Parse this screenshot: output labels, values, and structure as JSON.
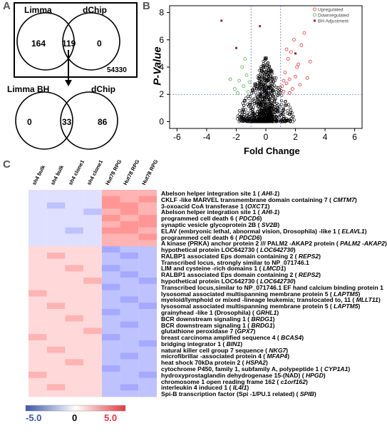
{
  "panel_a": {
    "letter": "A",
    "venn_top": {
      "left_label": "Limma",
      "right_label": "dChip",
      "left_only": "164",
      "overlap": "119",
      "right_only": "0",
      "box_total": "54330"
    },
    "venn_bottom": {
      "left_label": "Limma BH",
      "right_label": "dChip",
      "left_only": "0",
      "overlap": "33",
      "right_only": "86"
    }
  },
  "panel_b": {
    "letter": "B",
    "chart_data": {
      "type": "scatter",
      "xlabel": "Fold Change",
      "ylabel": "P-Value",
      "xlim": [
        -6.5,
        6.5
      ],
      "ylim": [
        -0.5,
        8.5
      ],
      "x_ticks": [
        "-6",
        "-4",
        "-2",
        "0",
        "2",
        "4",
        "6"
      ],
      "y_ticks": [
        "0",
        "2",
        "4",
        "6",
        "8"
      ],
      "thresholds": {
        "fold_change": [
          -1,
          1
        ],
        "p_value": 2
      },
      "legend": [
        "Upregulated",
        "Downregulated",
        "BH Adjustment"
      ],
      "series": [
        {
          "name": "Upregulated",
          "color": "#e2353b",
          "points": [
            [
              1.2,
              2.2
            ],
            [
              1.4,
              2.8
            ],
            [
              1.6,
              3.1
            ],
            [
              1.3,
              3.6
            ],
            [
              1.8,
              2.4
            ],
            [
              2.0,
              3.3
            ],
            [
              2.2,
              4.2
            ],
            [
              1.5,
              4.6
            ],
            [
              1.1,
              2.6
            ],
            [
              1.7,
              5.1
            ],
            [
              2.4,
              5.6
            ],
            [
              1.9,
              6.0
            ],
            [
              2.6,
              6.5
            ],
            [
              2.1,
              4.0
            ],
            [
              1.2,
              3.0
            ],
            [
              2.8,
              3.2
            ],
            [
              1.4,
              5.3
            ],
            [
              3.0,
              4.4
            ],
            [
              1.6,
              2.1
            ],
            [
              2.3,
              2.7
            ]
          ]
        },
        {
          "name": "Downregulated",
          "color": "#56b054",
          "points": [
            [
              -1.2,
              2.2
            ],
            [
              -1.5,
              2.6
            ],
            [
              -1.8,
              3.0
            ],
            [
              -1.3,
              3.4
            ],
            [
              -2.1,
              2.4
            ],
            [
              -1.6,
              4.0
            ],
            [
              -1.1,
              2.9
            ],
            [
              -1.4,
              4.6
            ],
            [
              -2.4,
              3.1
            ],
            [
              -1.9,
              2.1
            ]
          ]
        },
        {
          "name": "BH Adjustment",
          "color": "#8a2a4a",
          "points": [
            [
              -3.0,
              7.4
            ],
            [
              -2.0,
              5.4
            ],
            [
              -0.4,
              7.0
            ],
            [
              2.0,
              5.0
            ]
          ]
        }
      ]
    }
  },
  "panel_c": {
    "letter": "C",
    "columns": [
      "sh4 bulk",
      "sh4 bulk",
      "sh4 clone1",
      "sh4 clone1",
      "Hut78 RPG",
      "Hut78 RPG",
      "Hut78 RPG"
    ],
    "scale": {
      "low": "-5.0",
      "mid": "0",
      "high": "5.0",
      "low_color": "#3d57a8",
      "high_color": "#e13a42"
    },
    "genes": [
      {
        "name": "Abelson helper integration site 1 ( ",
        "sym": "AHI-1",
        "end": ")"
      },
      {
        "name": "CKLF -like MARVEL transmembrane domain containing 7 ( ",
        "sym": "CMTM7",
        "end": ")"
      },
      {
        "name": "3-oxoacid CoA transferase 1 (",
        "sym": "OXCT1",
        "end": ")"
      },
      {
        "name": "Abelson helper integration site 1 ( ",
        "sym": "AHI-1",
        "end": ")"
      },
      {
        "name": "programmed cell death 6 ( ",
        "sym": "PDCD6",
        "end": ")"
      },
      {
        "name": "synaptic vesicle glycoprotein 2B ( ",
        "sym": "SV2B",
        "end": ")"
      },
      {
        "name": "ELAV (embryonic lethal, abnormal vision, Drosophila) -like 1 ( ",
        "sym": "ELAVL1",
        "end": ")"
      },
      {
        "name": "programmed cell death 6 ( ",
        "sym": "PDCD6",
        "end": ")"
      },
      {
        "name": "A kinase (PRKA) anchor protein 2 /// PALM2 -AKAP2 protein ( ",
        "sym": "PALM2 -AKAP2",
        "end": ")"
      },
      {
        "name": "hypothetical protein LOC642730 ( ",
        "sym": "LOC642730",
        "end": ")"
      },
      {
        "name": "RALBP1 associated Eps domain containing 2 ( ",
        "sym": "REPS2",
        "end": ")"
      },
      {
        "name": "Transcribed locus, strongly similar to NP_071746.1",
        "sym": "",
        "end": ""
      },
      {
        "name": "LIM and cysteine -rich domains 1 ( ",
        "sym": "LMCD1",
        "end": ")"
      },
      {
        "name": "RALBP1 associated Eps domain containing 2 ( ",
        "sym": "REPS2",
        "end": ")"
      },
      {
        "name": "hypothetical protein LOC642730 ( ",
        "sym": "LOC642730",
        "end": ")"
      },
      {
        "name": "Transcribed locus,similar to NP_071746.1 EF hand calcium binding protein 1",
        "sym": "",
        "end": ""
      },
      {
        "name": "lysosomal associated multispanning membrane protein 5 ( ",
        "sym": "LAPTM5",
        "end": ")"
      },
      {
        "name": "myeloid/lymphoid or mixed -lineage leukemia; translocated to, 11 ( ",
        "sym": "MLLT11",
        "end": ")"
      },
      {
        "name": "lysosomal associated multispanning membrane protein 5 ( ",
        "sym": "LAPTM5",
        "end": ")"
      },
      {
        "name": "grainyhead -like 1 (Drosophila) ( ",
        "sym": "GRHL1",
        "end": ")"
      },
      {
        "name": "BCR downstream signaling 1 ( ",
        "sym": "BRDG1",
        "end": ")"
      },
      {
        "name": "BCR downstream signaling 1 ( ",
        "sym": "BRDG1",
        "end": ")"
      },
      {
        "name": "glutathione peroxidase 7 (",
        "sym": "GPX7",
        "end": ")"
      },
      {
        "name": "breast carcinoma amplified sequence 4 ( ",
        "sym": "BCAS4",
        "end": ")"
      },
      {
        "name": "bridging integrator 1 ( ",
        "sym": "BIN1",
        "end": ")"
      },
      {
        "name": "natural killer cell group 7 sequence ( ",
        "sym": "NKG7",
        "end": ")"
      },
      {
        "name": "microfibrillar -associated protein 4 ( ",
        "sym": "MFAP4",
        "end": ")"
      },
      {
        "name": "heat shock 70kDa protein 2 ( ",
        "sym": "HSPA2",
        "end": ")"
      },
      {
        "name": "cytochrome P450, family 1, subfamily A, polypeptide 1 ( ",
        "sym": "CYP1A1",
        "end": ")"
      },
      {
        "name": "hydroxyprostaglandin dehydrogenase 15-(NAD) ( ",
        "sym": "HPGD",
        "end": ")"
      },
      {
        "name": "chromosome 1 open reading frame 162 ( ",
        "sym": "c1orf162",
        "end": ")"
      },
      {
        "name": "interleukin 4 induced 1 ( ",
        "sym": "IL4I1",
        "end": ")"
      },
      {
        "name": "Spi-B transcription factor (Spi -1/PU.1 related) ( ",
        "sym": "SPIB",
        "end": ")"
      }
    ],
    "heatmap_values": [
      [
        -1,
        -1,
        -1,
        -1,
        2,
        2,
        2
      ],
      [
        -1,
        -1,
        -1,
        -1,
        3,
        2,
        3
      ],
      [
        -1,
        -2,
        -1,
        -1,
        3,
        3,
        2
      ],
      [
        -1,
        -1,
        -1,
        -2,
        2,
        3,
        2
      ],
      [
        -1,
        -1,
        -1,
        -1,
        3,
        2,
        3
      ],
      [
        -1,
        -1,
        -1,
        -1,
        2,
        3,
        3
      ],
      [
        -1,
        -1,
        -2,
        -1,
        3,
        3,
        2
      ],
      [
        -1,
        -1,
        -1,
        -1,
        2,
        2,
        3
      ],
      [
        -1,
        -1,
        -1,
        -1,
        2,
        2,
        2
      ],
      [
        1,
        1,
        1,
        1,
        -3,
        -2,
        -2
      ],
      [
        1,
        2,
        1,
        1,
        -2,
        -3,
        -2
      ],
      [
        1,
        1,
        1,
        1,
        -2,
        -2,
        -2
      ],
      [
        1,
        1,
        2,
        1,
        -3,
        -2,
        -2
      ],
      [
        1,
        1,
        1,
        1,
        -2,
        -3,
        -2
      ],
      [
        1,
        1,
        1,
        2,
        -2,
        -2,
        -3
      ],
      [
        1,
        1,
        1,
        1,
        -3,
        -2,
        -2
      ],
      [
        2,
        1,
        1,
        1,
        -2,
        -2,
        -2
      ],
      [
        1,
        1,
        1,
        1,
        -2,
        -3,
        -2
      ],
      [
        1,
        2,
        1,
        1,
        -2,
        -2,
        -3
      ],
      [
        1,
        1,
        1,
        1,
        -3,
        -2,
        -2
      ],
      [
        1,
        1,
        2,
        1,
        -2,
        -2,
        -2
      ],
      [
        1,
        1,
        1,
        1,
        -2,
        -3,
        -2
      ],
      [
        1,
        1,
        1,
        2,
        -2,
        -2,
        -2
      ],
      [
        2,
        1,
        1,
        1,
        -3,
        -2,
        -2
      ],
      [
        1,
        1,
        1,
        1,
        -2,
        -2,
        -3
      ],
      [
        1,
        2,
        1,
        1,
        -2,
        -2,
        -2
      ],
      [
        1,
        1,
        1,
        1,
        -2,
        -3,
        -2
      ],
      [
        1,
        1,
        2,
        1,
        -2,
        -2,
        -2
      ],
      [
        1,
        1,
        1,
        1,
        -3,
        -2,
        -2
      ],
      [
        2,
        1,
        1,
        1,
        -2,
        -2,
        -3
      ],
      [
        1,
        1,
        1,
        1,
        -2,
        -2,
        -2
      ],
      [
        1,
        2,
        1,
        1,
        -2,
        -3,
        -2
      ],
      [
        1,
        1,
        1,
        1,
        -2,
        -2,
        -2
      ]
    ]
  }
}
